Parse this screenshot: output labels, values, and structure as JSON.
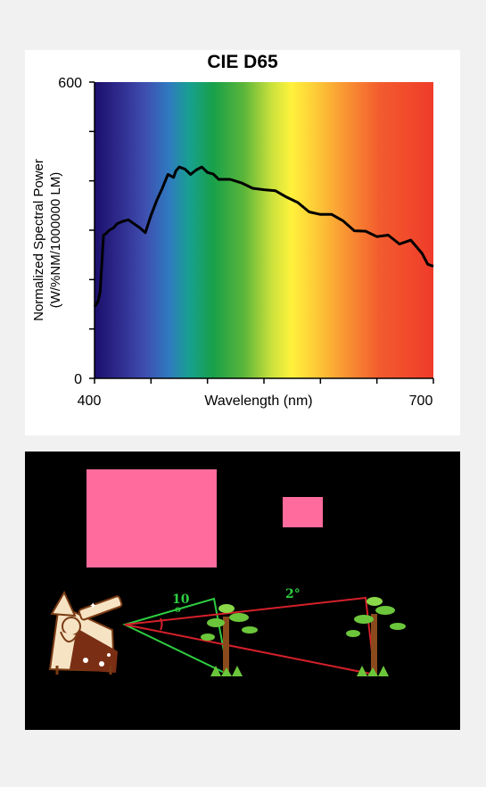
{
  "chart_data": {
    "type": "line",
    "title": "CIE D65",
    "xlabel": "Wavelength (nm)",
    "ylabel": "Normalized Spectral Power",
    "ylabel_unit": "(W/%NM/1000000 LM)",
    "xlim": [
      400,
      700
    ],
    "ylim": [
      0,
      600
    ],
    "x_ticks": [
      "400",
      "700"
    ],
    "y_ticks": [
      "0",
      "600"
    ],
    "background": "visible spectrum gradient",
    "series": [
      {
        "x": [
          400,
          403,
          405,
          408,
          410,
          413,
          417,
          420,
          425,
          430,
          435,
          440,
          445,
          450,
          455,
          460,
          465,
          470,
          472,
          475,
          480,
          485,
          490,
          495,
          500,
          505,
          510,
          520,
          530,
          540,
          550,
          560,
          570,
          580,
          590,
          600,
          610,
          620,
          630,
          640,
          650,
          660,
          670,
          680,
          690,
          695,
          700
        ],
        "y": [
          145,
          155,
          175,
          290,
          293,
          300,
          305,
          313,
          318,
          321,
          313,
          305,
          295,
          330,
          360,
          385,
          413,
          407,
          420,
          428,
          424,
          413,
          422,
          428,
          417,
          414,
          403,
          403,
          396,
          385,
          382,
          380,
          367,
          356,
          337,
          332,
          332,
          319,
          299,
          298,
          287,
          290,
          272,
          280,
          253,
          231,
          227
        ]
      }
    ],
    "grid": false
  },
  "angles": {
    "green_label": "10",
    "green_sub": "o",
    "red_label": "2°"
  },
  "colors": {
    "square": "#ff6b9d",
    "green": "#2ecc40",
    "red": "#d4202a",
    "curve": "#000000"
  },
  "icons": {
    "observer": "astronomer-with-telescope-icon",
    "near_tree": "tree-icon",
    "far_tree": "tree-icon"
  }
}
